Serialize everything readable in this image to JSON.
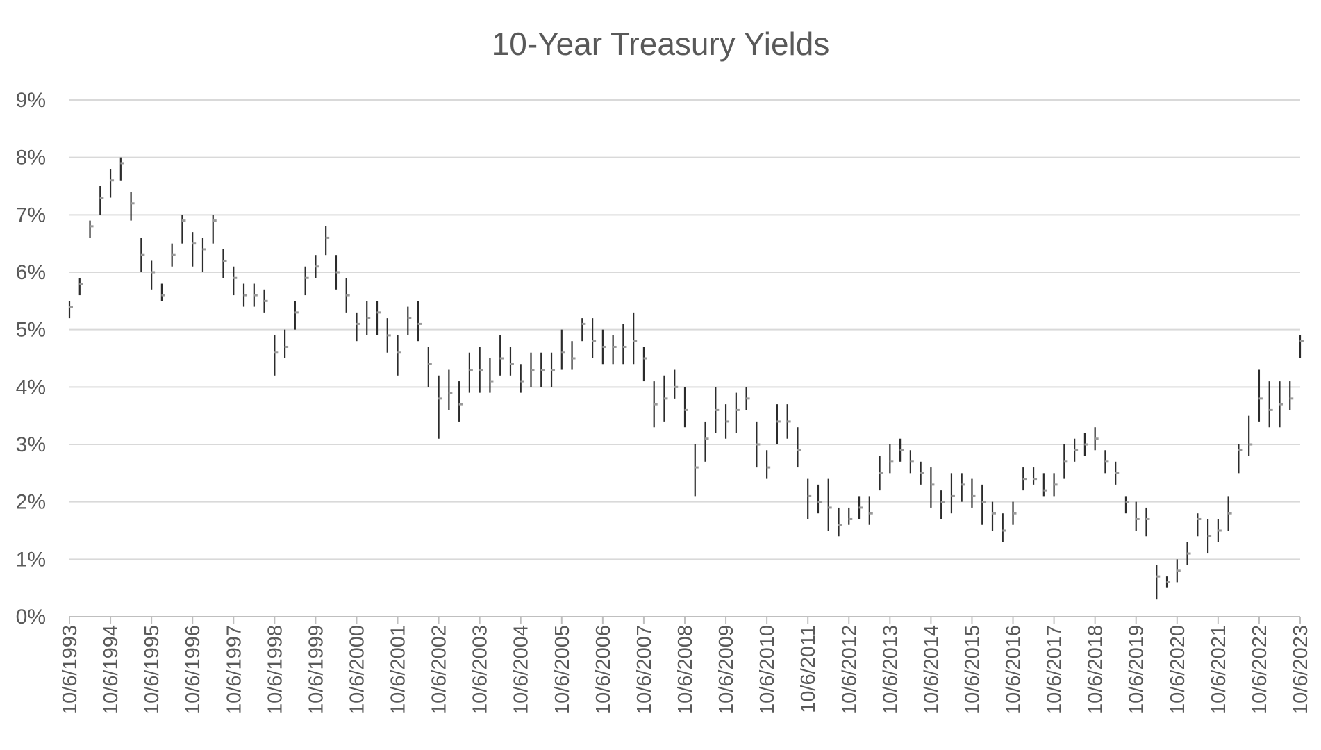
{
  "chart_data": {
    "type": "stock-hlc",
    "title": "10-Year Treasury Yields",
    "xlabel": "",
    "ylabel": "",
    "ylim": [
      0,
      9
    ],
    "y_ticks": [
      "0%",
      "1%",
      "2%",
      "3%",
      "4%",
      "5%",
      "6%",
      "7%",
      "8%",
      "9%"
    ],
    "x_ticks": [
      "10/6/1993",
      "10/6/1994",
      "10/6/1995",
      "10/6/1996",
      "10/6/1997",
      "10/6/1998",
      "10/6/1999",
      "10/6/2000",
      "10/6/2001",
      "10/6/2002",
      "10/6/2003",
      "10/6/2004",
      "10/6/2005",
      "10/6/2006",
      "10/6/2007",
      "10/6/2008",
      "10/6/2009",
      "10/6/2010",
      "10/6/2011",
      "10/6/2012",
      "10/6/2013",
      "10/6/2014",
      "10/6/2015",
      "10/6/2016",
      "10/6/2017",
      "10/6/2018",
      "10/6/2019",
      "10/6/2020",
      "10/6/2021",
      "10/6/2022",
      "10/6/2023"
    ],
    "grid": true,
    "legend": "none",
    "series_color_high_low": "#2b2b2b",
    "series_color_close": "#9a9a9a",
    "series": [
      {
        "x": [
          "1993-10",
          "1994-01",
          "1994-04",
          "1994-07",
          "1994-10",
          "1995-01",
          "1995-04",
          "1995-07",
          "1995-10",
          "1996-01",
          "1996-04",
          "1996-07",
          "1996-10",
          "1997-01",
          "1997-04",
          "1997-07",
          "1997-10",
          "1998-01",
          "1998-04",
          "1998-07",
          "1998-10",
          "1999-01",
          "1999-04",
          "1999-07",
          "1999-10",
          "2000-01",
          "2000-04",
          "2000-07",
          "2000-10",
          "2001-01",
          "2001-04",
          "2001-07",
          "2001-10",
          "2002-01",
          "2002-04",
          "2002-07",
          "2002-10",
          "2003-01",
          "2003-04",
          "2003-07",
          "2003-10",
          "2004-01",
          "2004-04",
          "2004-07",
          "2004-10",
          "2005-01",
          "2005-04",
          "2005-07",
          "2005-10",
          "2006-01",
          "2006-04",
          "2006-07",
          "2006-10",
          "2007-01",
          "2007-04",
          "2007-07",
          "2007-10",
          "2008-01",
          "2008-04",
          "2008-07",
          "2008-10",
          "2009-01",
          "2009-04",
          "2009-07",
          "2009-10",
          "2010-01",
          "2010-04",
          "2010-07",
          "2010-10",
          "2011-01",
          "2011-04",
          "2011-07",
          "2011-10",
          "2012-01",
          "2012-04",
          "2012-07",
          "2012-10",
          "2013-01",
          "2013-04",
          "2013-07",
          "2013-10",
          "2014-01",
          "2014-04",
          "2014-07",
          "2014-10",
          "2015-01",
          "2015-04",
          "2015-07",
          "2015-10",
          "2016-01",
          "2016-04",
          "2016-07",
          "2016-10",
          "2017-01",
          "2017-04",
          "2017-07",
          "2017-10",
          "2018-01",
          "2018-04",
          "2018-07",
          "2018-10",
          "2019-01",
          "2019-04",
          "2019-07",
          "2019-10",
          "2020-01",
          "2020-04",
          "2020-07",
          "2020-10",
          "2021-01",
          "2021-04",
          "2021-07",
          "2021-10",
          "2022-01",
          "2022-04",
          "2022-07",
          "2022-10",
          "2023-01",
          "2023-04",
          "2023-07",
          "2023-10"
        ],
        "close": [
          5.4,
          5.8,
          6.8,
          7.3,
          7.6,
          7.9,
          7.2,
          6.3,
          6.0,
          5.6,
          6.3,
          6.9,
          6.5,
          6.4,
          6.9,
          6.2,
          5.9,
          5.6,
          5.6,
          5.5,
          4.6,
          4.7,
          5.3,
          5.9,
          6.1,
          6.6,
          6.0,
          5.6,
          5.1,
          5.2,
          5.3,
          4.9,
          4.6,
          5.2,
          5.1,
          4.4,
          3.8,
          3.9,
          3.7,
          4.3,
          4.3,
          4.1,
          4.5,
          4.4,
          4.1,
          4.3,
          4.3,
          4.3,
          4.6,
          4.5,
          5.1,
          4.8,
          4.7,
          4.7,
          4.7,
          4.8,
          4.5,
          3.7,
          3.8,
          4.0,
          3.6,
          2.6,
          3.1,
          3.6,
          3.4,
          3.6,
          3.8,
          3.0,
          2.6,
          3.4,
          3.4,
          2.9,
          2.1,
          2.0,
          1.9,
          1.6,
          1.7,
          1.9,
          1.8,
          2.5,
          2.7,
          2.9,
          2.7,
          2.5,
          2.3,
          2.0,
          2.1,
          2.3,
          2.1,
          2.0,
          1.8,
          1.5,
          1.8,
          2.4,
          2.4,
          2.2,
          2.3,
          2.7,
          2.9,
          3.0,
          3.1,
          2.7,
          2.5,
          2.0,
          1.7,
          1.7,
          0.7,
          0.6,
          0.8,
          1.1,
          1.7,
          1.4,
          1.5,
          1.8,
          2.9,
          3.0,
          3.8,
          3.6,
          3.7,
          3.8,
          4.8
        ],
        "high": [
          5.5,
          5.9,
          6.9,
          7.5,
          7.8,
          8.0,
          7.4,
          6.6,
          6.2,
          5.8,
          6.5,
          7.0,
          6.7,
          6.6,
          7.0,
          6.4,
          6.1,
          5.8,
          5.8,
          5.7,
          4.9,
          5.0,
          5.5,
          6.1,
          6.3,
          6.8,
          6.3,
          5.9,
          5.3,
          5.5,
          5.5,
          5.2,
          4.9,
          5.4,
          5.5,
          4.7,
          4.2,
          4.3,
          4.1,
          4.6,
          4.7,
          4.5,
          4.9,
          4.7,
          4.4,
          4.6,
          4.6,
          4.6,
          5.0,
          4.8,
          5.2,
          5.2,
          5.0,
          4.9,
          5.1,
          5.3,
          4.7,
          4.1,
          4.2,
          4.3,
          4.0,
          3.0,
          3.4,
          4.0,
          3.7,
          3.9,
          4.0,
          3.4,
          2.9,
          3.7,
          3.7,
          3.3,
          2.4,
          2.3,
          2.4,
          1.9,
          1.9,
          2.1,
          2.1,
          2.8,
          3.0,
          3.1,
          2.9,
          2.7,
          2.6,
          2.2,
          2.5,
          2.5,
          2.4,
          2.3,
          2.0,
          1.8,
          2.0,
          2.6,
          2.6,
          2.5,
          2.5,
          3.0,
          3.1,
          3.2,
          3.3,
          2.9,
          2.7,
          2.1,
          2.0,
          1.9,
          0.9,
          0.7,
          1.0,
          1.3,
          1.8,
          1.7,
          1.7,
          2.1,
          3.0,
          3.5,
          4.3,
          4.1,
          4.1,
          4.1,
          4.9
        ],
        "low": [
          5.2,
          5.6,
          6.6,
          7.0,
          7.3,
          7.6,
          6.9,
          6.0,
          5.7,
          5.5,
          6.1,
          6.5,
          6.1,
          6.0,
          6.5,
          5.9,
          5.6,
          5.4,
          5.4,
          5.3,
          4.2,
          4.5,
          5.0,
          5.6,
          5.9,
          6.3,
          5.7,
          5.3,
          4.8,
          4.9,
          4.9,
          4.6,
          4.2,
          4.9,
          4.8,
          4.0,
          3.1,
          3.6,
          3.4,
          3.9,
          3.9,
          3.9,
          4.2,
          4.2,
          3.9,
          4.0,
          4.0,
          4.0,
          4.3,
          4.3,
          4.8,
          4.5,
          4.4,
          4.4,
          4.4,
          4.4,
          4.1,
          3.3,
          3.4,
          3.8,
          3.3,
          2.1,
          2.7,
          3.2,
          3.1,
          3.2,
          3.6,
          2.6,
          2.4,
          3.0,
          3.1,
          2.6,
          1.7,
          1.8,
          1.5,
          1.4,
          1.6,
          1.7,
          1.6,
          2.2,
          2.5,
          2.7,
          2.5,
          2.3,
          1.9,
          1.7,
          1.8,
          2.0,
          1.9,
          1.6,
          1.5,
          1.3,
          1.6,
          2.2,
          2.3,
          2.1,
          2.1,
          2.4,
          2.7,
          2.8,
          2.9,
          2.5,
          2.3,
          1.8,
          1.5,
          1.4,
          0.3,
          0.5,
          0.6,
          0.9,
          1.4,
          1.1,
          1.3,
          1.5,
          2.5,
          2.8,
          3.4,
          3.3,
          3.3,
          3.6,
          4.5
        ]
      }
    ]
  }
}
